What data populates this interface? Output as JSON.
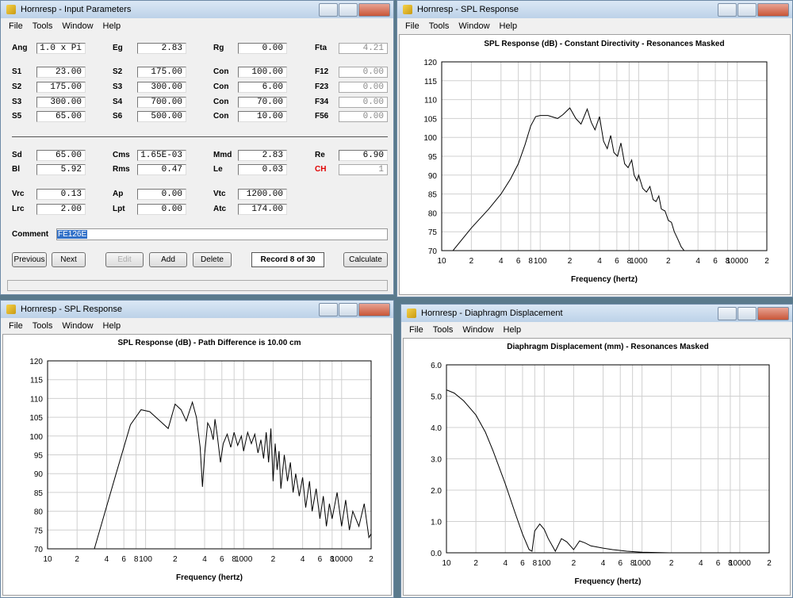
{
  "windows": [
    {
      "title": "Hornresp - Input Parameters",
      "menu": [
        "File",
        "Tools",
        "Window",
        "Help"
      ]
    },
    {
      "title": "Hornresp - SPL Response",
      "menu": [
        "File",
        "Tools",
        "Window",
        "Help"
      ]
    },
    {
      "title": "Hornresp - SPL Response",
      "menu": [
        "File",
        "Tools",
        "Window",
        "Help"
      ]
    },
    {
      "title": "Hornresp - Diaphragm Displacement",
      "menu": [
        "File",
        "Tools",
        "Window",
        "Help"
      ]
    }
  ],
  "form": {
    "rows": [
      [
        {
          "label": "Ang",
          "value": "1.0 x Pi"
        },
        {
          "label": "Eg",
          "value": "2.83"
        },
        {
          "label": "Rg",
          "value": "0.00"
        },
        {
          "label": "Fta",
          "value": "4.21"
        }
      ],
      [
        {
          "label": "S1",
          "value": "23.00"
        },
        {
          "label": "S2",
          "value": "175.00"
        },
        {
          "label": "Con",
          "value": "100.00"
        },
        {
          "label": "F12",
          "value": "0.00"
        }
      ],
      [
        {
          "label": "S2",
          "value": "175.00"
        },
        {
          "label": "S3",
          "value": "300.00"
        },
        {
          "label": "Con",
          "value": "6.00"
        },
        {
          "label": "F23",
          "value": "0.00"
        }
      ],
      [
        {
          "label": "S3",
          "value": "300.00"
        },
        {
          "label": "S4",
          "value": "700.00"
        },
        {
          "label": "Con",
          "value": "70.00"
        },
        {
          "label": "F34",
          "value": "0.00"
        }
      ],
      [
        {
          "label": "S5",
          "value": "65.00"
        },
        {
          "label": "S6",
          "value": "500.00"
        },
        {
          "label": "Con",
          "value": "10.00"
        },
        {
          "label": "F56",
          "value": "0.00"
        }
      ],
      [
        {
          "label": "Sd",
          "value": "65.00"
        },
        {
          "label": "Cms",
          "value": "1.65E-03"
        },
        {
          "label": "Mmd",
          "value": "2.83"
        },
        {
          "label": "Re",
          "value": "6.90"
        }
      ],
      [
        {
          "label": "Bl",
          "value": "5.92"
        },
        {
          "label": "Rms",
          "value": "0.47"
        },
        {
          "label": "Le",
          "value": "0.03"
        },
        {
          "label": "CH",
          "value": "1"
        }
      ],
      [
        {
          "label": "Vrc",
          "value": "0.13"
        },
        {
          "label": "Ap",
          "value": "0.00"
        },
        {
          "label": "Vtc",
          "value": "1200.00"
        }
      ],
      [
        {
          "label": "Lrc",
          "value": "2.00"
        },
        {
          "label": "Lpt",
          "value": "0.00"
        },
        {
          "label": "Atc",
          "value": "174.00"
        }
      ]
    ],
    "comment_label": "Comment",
    "comment": "FE126E",
    "buttons": [
      "Previous",
      "Next",
      "Edit",
      "Add",
      "Delete",
      "Calculate"
    ],
    "record": "Record 8 of 30"
  },
  "chart_data": [
    {
      "type": "line",
      "title": "SPL Response (dB) - Constant Directivity - Resonances Masked",
      "x_label": "Frequency (hertz)",
      "log_x": true,
      "grid": true,
      "color": "#000000",
      "xlim": [
        10,
        20000
      ],
      "xticks": [
        10,
        {
          "value": 20,
          "label": "2"
        },
        {
          "value": 40,
          "label": "4"
        },
        {
          "value": 60,
          "label": "6"
        },
        {
          "value": 80,
          "label": "8"
        },
        100,
        {
          "value": 200,
          "label": "2"
        },
        {
          "value": 400,
          "label": "4"
        },
        {
          "value": 600,
          "label": "6"
        },
        {
          "value": 800,
          "label": "8"
        },
        1000,
        {
          "value": 2000,
          "label": "2"
        },
        {
          "value": 4000,
          "label": "4"
        },
        {
          "value": 6000,
          "label": "6"
        },
        {
          "value": 8000,
          "label": "8"
        },
        10000,
        {
          "value": 20000,
          "label": "2"
        }
      ],
      "ylim": [
        70,
        120
      ],
      "yticks": [
        70,
        75,
        80,
        85,
        90,
        95,
        100,
        105,
        110,
        115,
        120
      ],
      "x": [
        13,
        20,
        30,
        40,
        50,
        60,
        70,
        80,
        90,
        100,
        120,
        150,
        170,
        200,
        230,
        260,
        300,
        330,
        360,
        400,
        440,
        480,
        520,
        560,
        610,
        660,
        720,
        780,
        850,
        900,
        960,
        1000,
        1100,
        1200,
        1300,
        1400,
        1500,
        1600,
        1700,
        1850,
        2000,
        2150,
        2300,
        2500,
        2700,
        2900
      ],
      "values": [
        70,
        76,
        81,
        85,
        89,
        93,
        98,
        103,
        105.5,
        105.8,
        105.8,
        105,
        106,
        107.8,
        105,
        103.5,
        107.5,
        104,
        102,
        105.5,
        99,
        97,
        100.5,
        96,
        95,
        98.5,
        93,
        92,
        94,
        90,
        88.5,
        90,
        86.5,
        85.5,
        87,
        83.5,
        83,
        84.5,
        81,
        80.5,
        78,
        77.5,
        75,
        73,
        71,
        70
      ]
    },
    {
      "type": "line",
      "title": "SPL Response (dB) - Path Difference is 10.00 cm",
      "x_label": "Frequency (hertz)",
      "log_x": true,
      "grid": true,
      "color": "#000000",
      "xlim": [
        10,
        20000
      ],
      "xticks": [
        10,
        {
          "value": 20,
          "label": "2"
        },
        {
          "value": 40,
          "label": "4"
        },
        {
          "value": 60,
          "label": "6"
        },
        {
          "value": 80,
          "label": "8"
        },
        100,
        {
          "value": 200,
          "label": "2"
        },
        {
          "value": 400,
          "label": "4"
        },
        {
          "value": 600,
          "label": "6"
        },
        {
          "value": 800,
          "label": "8"
        },
        1000,
        {
          "value": 2000,
          "label": "2"
        },
        {
          "value": 4000,
          "label": "4"
        },
        {
          "value": 6000,
          "label": "6"
        },
        {
          "value": 8000,
          "label": "8"
        },
        10000,
        {
          "value": 20000,
          "label": "2"
        }
      ],
      "ylim": [
        70,
        120
      ],
      "yticks": [
        70,
        75,
        80,
        85,
        90,
        95,
        100,
        105,
        110,
        115,
        120
      ],
      "x": [
        30,
        50,
        70,
        90,
        110,
        140,
        170,
        200,
        230,
        260,
        300,
        330,
        360,
        380,
        400,
        430,
        460,
        490,
        510,
        540,
        580,
        620,
        680,
        740,
        800,
        870,
        950,
        1000,
        1100,
        1200,
        1300,
        1400,
        1500,
        1600,
        1700,
        1800,
        1900,
        2000,
        2100,
        2200,
        2300,
        2400,
        2600,
        2800,
        3000,
        3200,
        3400,
        3700,
        4000,
        4300,
        4700,
        5000,
        5500,
        6000,
        6500,
        7000,
        7500,
        8000,
        9000,
        10000,
        11000,
        12000,
        13000,
        15000,
        17000,
        19000,
        20000
      ],
      "values": [
        70,
        90,
        103,
        107,
        106.5,
        104,
        102,
        108.5,
        107,
        104,
        109,
        105,
        97,
        86.5,
        95,
        103.5,
        102,
        99,
        104.5,
        100,
        93,
        98,
        100.5,
        97,
        101,
        97.5,
        100,
        96,
        101,
        98,
        100.5,
        95.5,
        99,
        94,
        101,
        93,
        102,
        88,
        98,
        91,
        96,
        86,
        95,
        88,
        93,
        85,
        90,
        84,
        89,
        81,
        88,
        80,
        86,
        78,
        84,
        76,
        82,
        78,
        85,
        76,
        83,
        75,
        80,
        76,
        82,
        73,
        74
      ]
    },
    {
      "type": "line",
      "title": "Diaphragm Displacement (mm) - Resonances Masked",
      "x_label": "Frequency (hertz)",
      "log_x": true,
      "grid": true,
      "color": "#000000",
      "xlim": [
        10,
        20000
      ],
      "xticks": [
        10,
        {
          "value": 20,
          "label": "2"
        },
        {
          "value": 40,
          "label": "4"
        },
        {
          "value": 60,
          "label": "6"
        },
        {
          "value": 80,
          "label": "8"
        },
        100,
        {
          "value": 200,
          "label": "2"
        },
        {
          "value": 400,
          "label": "4"
        },
        {
          "value": 600,
          "label": "6"
        },
        {
          "value": 800,
          "label": "8"
        },
        1000,
        {
          "value": 2000,
          "label": "2"
        },
        {
          "value": 4000,
          "label": "4"
        },
        {
          "value": 6000,
          "label": "6"
        },
        {
          "value": 8000,
          "label": "8"
        },
        10000,
        {
          "value": 20000,
          "label": "2"
        }
      ],
      "ylim": [
        0,
        6
      ],
      "yticks": [
        {
          "value": 0,
          "label": "0.0"
        },
        {
          "value": 1,
          "label": "1.0"
        },
        {
          "value": 2,
          "label": "2.0"
        },
        {
          "value": 3,
          "label": "3.0"
        },
        {
          "value": 4,
          "label": "4.0"
        },
        {
          "value": 5,
          "label": "5.0"
        },
        {
          "value": 6,
          "label": "6.0"
        }
      ],
      "x": [
        10,
        12,
        15,
        20,
        25,
        30,
        40,
        50,
        60,
        70,
        75,
        80,
        90,
        100,
        110,
        130,
        150,
        170,
        200,
        230,
        260,
        300,
        400,
        500,
        700,
        1000,
        1900
      ],
      "values": [
        5.2,
        5.1,
        4.85,
        4.4,
        3.85,
        3.25,
        2.2,
        1.3,
        0.6,
        0.1,
        0.05,
        0.7,
        0.92,
        0.75,
        0.45,
        0.05,
        0.45,
        0.35,
        0.1,
        0.38,
        0.32,
        0.22,
        0.15,
        0.1,
        0.05,
        0.02,
        0
      ]
    }
  ]
}
